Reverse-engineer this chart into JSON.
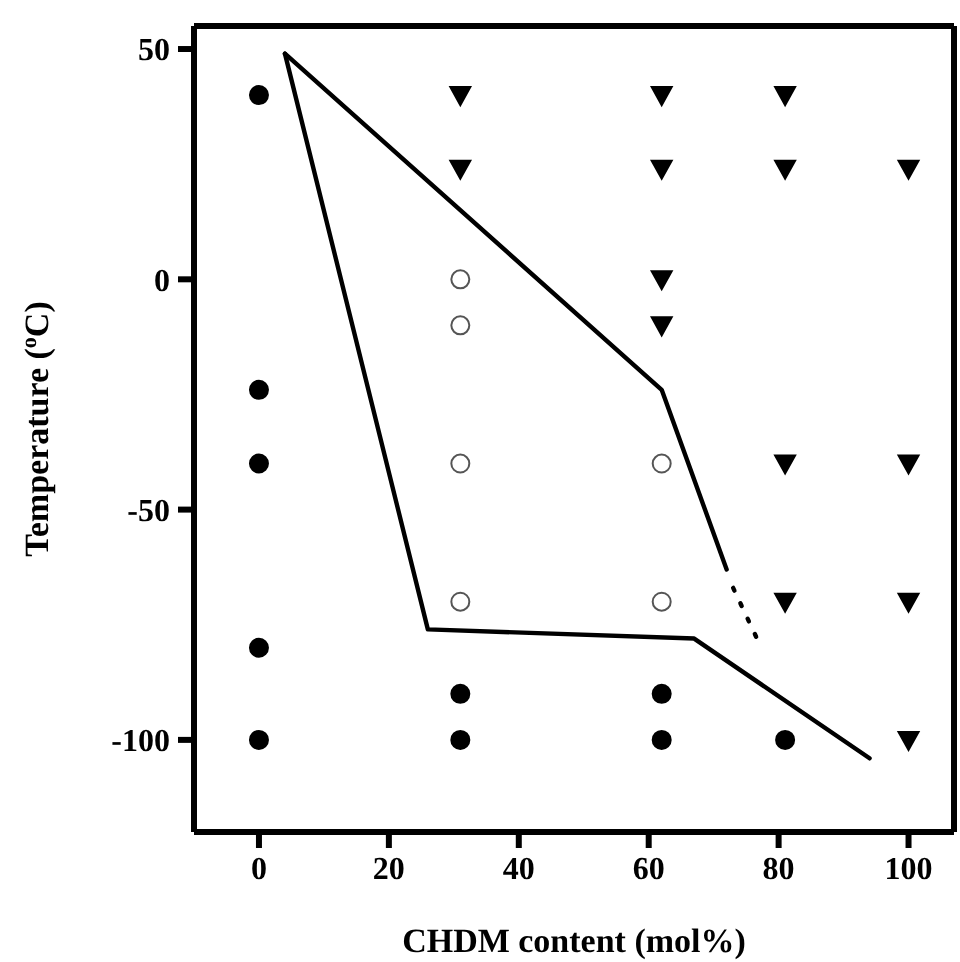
{
  "chart_data": {
    "type": "scatter",
    "xlabel": "CHDM content (mol%)",
    "ylabel": "Temperature ($^{o}$C)",
    "xlim": [
      -10,
      107
    ],
    "ylim": [
      -120,
      55
    ],
    "xticks": [
      0,
      20,
      40,
      60,
      80,
      100
    ],
    "yticks": [
      -100,
      -50,
      0,
      50
    ],
    "series": [
      {
        "marker": "circle",
        "color": "#000000",
        "x": [
          0,
          0,
          0,
          0,
          0,
          31,
          31,
          62,
          62,
          81
        ],
        "values": [
          40,
          -24,
          -40,
          -80,
          -100,
          -90,
          -100,
          -90,
          -100,
          -100
        ]
      },
      {
        "marker": "circle",
        "color": "#ffffff",
        "x": [
          31,
          31,
          31,
          31,
          62,
          62
        ],
        "values": [
          0,
          -10,
          -40,
          -70,
          -40,
          -70
        ]
      },
      {
        "marker": "triangle",
        "color": "#000000",
        "x": [
          31,
          62,
          81,
          31,
          62,
          81,
          100,
          62,
          62,
          81,
          100,
          81,
          100,
          100
        ],
        "values": [
          40,
          40,
          40,
          24,
          24,
          24,
          24,
          0,
          -10,
          -40,
          -40,
          -70,
          -70,
          -100
        ]
      },
      {
        "type": "line",
        "line_style": "solid",
        "color": "#000000",
        "x": [
          4,
          62,
          72
        ],
        "values": [
          49,
          -24,
          -63
        ]
      },
      {
        "type": "line",
        "line_style": "solid",
        "color": "#000000",
        "x": [
          4,
          26,
          67,
          94
        ],
        "values": [
          49,
          -76,
          -78,
          -104
        ]
      },
      {
        "type": "line",
        "line_style": "dotted",
        "color": "#000000",
        "x": [
          73,
          77
        ],
        "values": [
          -67,
          -79
        ]
      }
    ]
  }
}
